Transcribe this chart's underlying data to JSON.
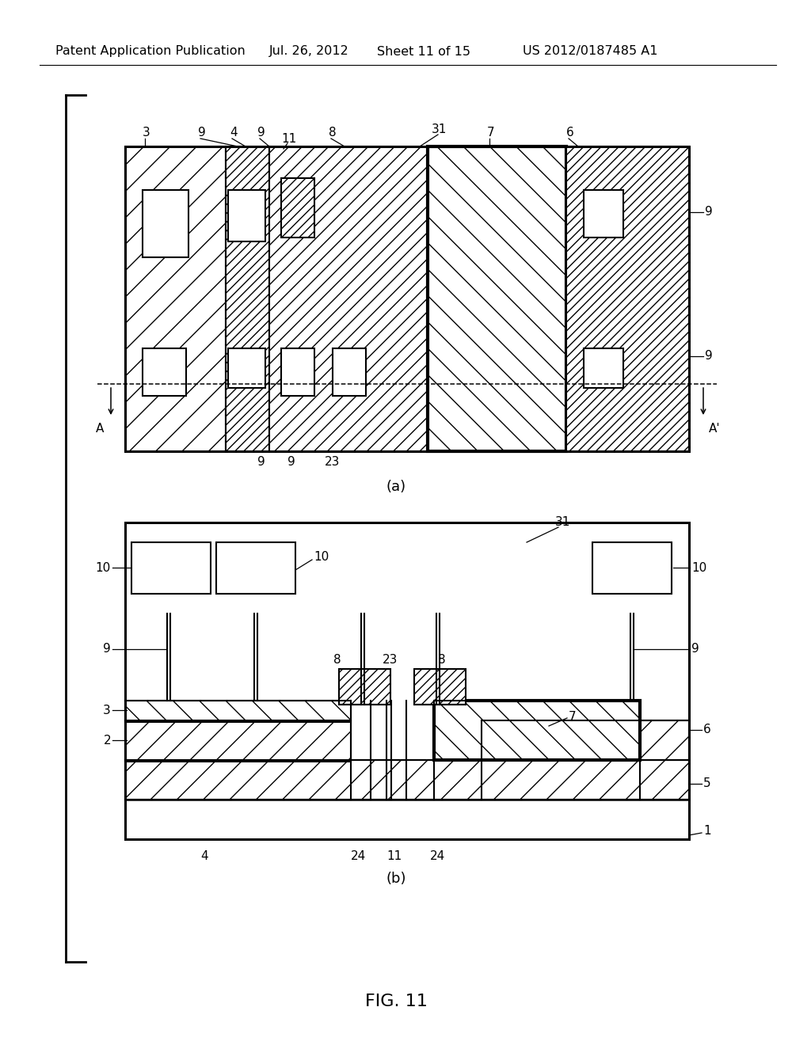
{
  "title_line1": "Patent Application Publication",
  "title_date": "Jul. 26, 2012",
  "title_sheet": "Sheet 11 of 15",
  "title_patent": "US 2012/0187485 A1",
  "fig_label": "FIG. 11",
  "label_a": "(a)",
  "label_b": "(b)",
  "bg_color": "#ffffff"
}
